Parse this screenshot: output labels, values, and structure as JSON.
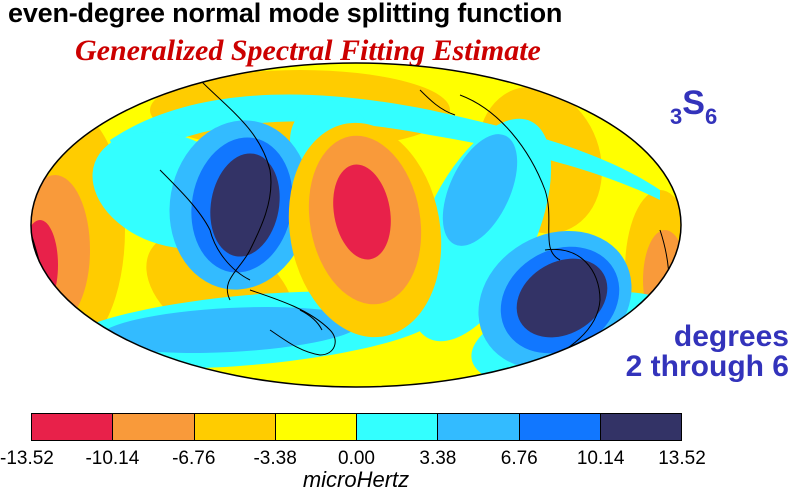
{
  "title": "even-degree normal mode splitting function",
  "subtitle": "Generalized Spectral Fitting Estimate",
  "mode": {
    "prefix": "3",
    "letter": "S",
    "suffix": "6"
  },
  "degrees": {
    "line1": "degrees",
    "line2": "2 through 6"
  },
  "colorbar": {
    "unit": "microHertz",
    "ticks": [
      "-13.52",
      "-10.14",
      "-6.76",
      "-3.38",
      "0.00",
      "3.38",
      "6.76",
      "10.14",
      "13.52"
    ],
    "colors": [
      "#e8214a",
      "#f99a3a",
      "#ffcc00",
      "#ffff00",
      "#33ffff",
      "#33bbff",
      "#1177ff",
      "#333366"
    ]
  },
  "palette": {
    "map_background": "#ffff00",
    "title_color": "#000000",
    "subtitle_color": "#cc0000",
    "label_color": "#3333bb"
  }
}
